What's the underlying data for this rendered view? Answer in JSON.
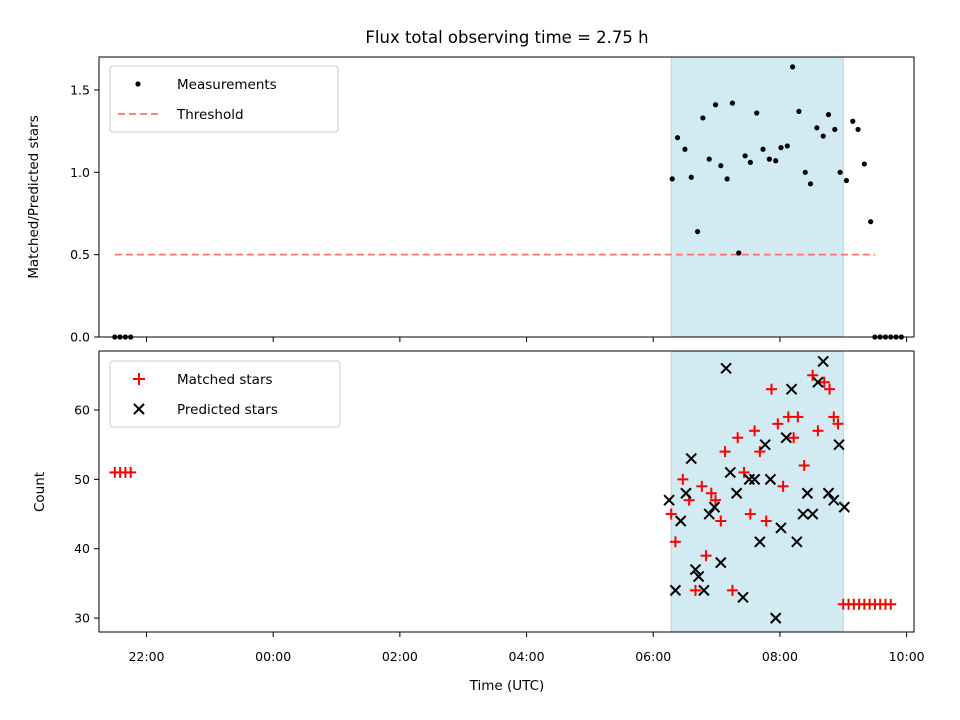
{
  "chart_data": [
    {
      "type": "scatter",
      "title": "Flux total observing time = 2.75 h",
      "xlabel": "",
      "ylabel": "Matched/Predicted stars",
      "x_unit": "hours since 2023-xx 00:00 UTC (ticks 22:00..10:00)",
      "xlim": [
        "21:15",
        "10:07"
      ],
      "ylim": [
        0,
        1.7
      ],
      "yticks": [
        "0.0",
        "0.5",
        "1.0",
        "1.5"
      ],
      "shaded_band": {
        "start": "06:17",
        "end": "09:00",
        "color": "#add8e6"
      },
      "threshold": {
        "name": "Threshold",
        "y": 0.5,
        "x_start": "21:30",
        "x_end": "09:30",
        "color": "#ff6f6f"
      },
      "series": [
        {
          "name": "Measurements",
          "color": "#000000",
          "points": [
            [
              "21:30",
              0
            ],
            [
              "21:35",
              0
            ],
            [
              "21:40",
              0
            ],
            [
              "21:45",
              0
            ],
            [
              "06:18",
              0.96
            ],
            [
              "06:23",
              1.21
            ],
            [
              "06:30",
              1.14
            ],
            [
              "06:36",
              0.97
            ],
            [
              "06:42",
              0.64
            ],
            [
              "06:47",
              1.33
            ],
            [
              "06:53",
              1.08
            ],
            [
              "06:59",
              1.41
            ],
            [
              "07:04",
              1.04
            ],
            [
              "07:10",
              0.96
            ],
            [
              "07:15",
              1.42
            ],
            [
              "07:21",
              0.51
            ],
            [
              "07:27",
              1.1
            ],
            [
              "07:32",
              1.06
            ],
            [
              "07:38",
              1.36
            ],
            [
              "07:44",
              1.14
            ],
            [
              "07:50",
              1.08
            ],
            [
              "07:56",
              1.07
            ],
            [
              "08:01",
              1.15
            ],
            [
              "08:07",
              1.16
            ],
            [
              "08:12",
              1.64
            ],
            [
              "08:18",
              1.37
            ],
            [
              "08:24",
              1.0
            ],
            [
              "08:29",
              0.93
            ],
            [
              "08:35",
              1.27
            ],
            [
              "08:41",
              1.22
            ],
            [
              "08:46",
              1.35
            ],
            [
              "08:52",
              1.26
            ],
            [
              "08:57",
              1.0
            ],
            [
              "09:03",
              0.95
            ],
            [
              "09:09",
              1.31
            ],
            [
              "09:14",
              1.26
            ],
            [
              "09:20",
              1.05
            ],
            [
              "09:26",
              0.7
            ],
            [
              "09:30",
              0
            ],
            [
              "09:35",
              0
            ],
            [
              "09:40",
              0
            ],
            [
              "09:45",
              0
            ],
            [
              "09:50",
              0
            ],
            [
              "09:55",
              0
            ]
          ]
        }
      ],
      "legend": {
        "placement": "top-left",
        "entries": [
          "Measurements",
          "Threshold"
        ]
      }
    },
    {
      "type": "scatter",
      "title": "",
      "xlabel": "Time (UTC)",
      "ylabel": "Count",
      "xticks": [
        "22:00",
        "00:00",
        "02:00",
        "04:00",
        "06:00",
        "08:00",
        "10:00"
      ],
      "ylim": [
        28,
        68.5
      ],
      "yticks": [
        "30",
        "40",
        "50",
        "60"
      ],
      "shaded_band": {
        "start": "06:17",
        "end": "09:00",
        "color": "#add8e6"
      },
      "series": [
        {
          "name": "Matched stars",
          "marker": "plus",
          "color": "#ff0000",
          "points": [
            [
              "21:30",
              51
            ],
            [
              "21:35",
              51
            ],
            [
              "21:40",
              51
            ],
            [
              "21:45",
              51
            ],
            [
              "06:17",
              45
            ],
            [
              "06:21",
              41
            ],
            [
              "06:28",
              50
            ],
            [
              "06:34",
              47
            ],
            [
              "06:40",
              34
            ],
            [
              "06:46",
              49
            ],
            [
              "06:50",
              39
            ],
            [
              "06:55",
              48
            ],
            [
              "06:59",
              47
            ],
            [
              "07:04",
              44
            ],
            [
              "07:08",
              54
            ],
            [
              "07:15",
              34
            ],
            [
              "07:20",
              56
            ],
            [
              "07:26",
              51
            ],
            [
              "07:32",
              45
            ],
            [
              "07:36",
              57
            ],
            [
              "07:41",
              54
            ],
            [
              "07:47",
              44
            ],
            [
              "07:52",
              63
            ],
            [
              "07:58",
              58
            ],
            [
              "08:03",
              49
            ],
            [
              "08:08",
              59
            ],
            [
              "08:13",
              56
            ],
            [
              "08:17",
              59
            ],
            [
              "08:23",
              52
            ],
            [
              "08:31",
              65
            ],
            [
              "08:36",
              57
            ],
            [
              "08:42",
              64
            ],
            [
              "08:47",
              63
            ],
            [
              "08:51",
              59
            ],
            [
              "08:55",
              58
            ],
            [
              "09:00",
              32
            ],
            [
              "09:05",
              32
            ],
            [
              "09:10",
              32
            ],
            [
              "09:15",
              32
            ],
            [
              "09:20",
              32
            ],
            [
              "09:25",
              32
            ],
            [
              "09:30",
              32
            ],
            [
              "09:35",
              32
            ],
            [
              "09:40",
              32
            ],
            [
              "09:45",
              32
            ]
          ]
        },
        {
          "name": "Predicted stars",
          "marker": "x",
          "color": "#000000",
          "points": [
            [
              "06:15",
              47
            ],
            [
              "06:21",
              34
            ],
            [
              "06:26",
              44
            ],
            [
              "06:31",
              48
            ],
            [
              "06:36",
              53
            ],
            [
              "06:40",
              37
            ],
            [
              "06:43",
              36
            ],
            [
              "06:48",
              34
            ],
            [
              "06:53",
              45
            ],
            [
              "06:58",
              46
            ],
            [
              "07:04",
              38
            ],
            [
              "07:09",
              66
            ],
            [
              "07:13",
              51
            ],
            [
              "07:19",
              48
            ],
            [
              "07:25",
              33
            ],
            [
              "07:31",
              50
            ],
            [
              "07:36",
              50
            ],
            [
              "07:41",
              41
            ],
            [
              "07:46",
              55
            ],
            [
              "07:51",
              50
            ],
            [
              "07:56",
              30
            ],
            [
              "08:01",
              43
            ],
            [
              "08:06",
              56
            ],
            [
              "08:11",
              63
            ],
            [
              "08:16",
              41
            ],
            [
              "08:22",
              45
            ],
            [
              "08:26",
              48
            ],
            [
              "08:31",
              45
            ],
            [
              "08:36",
              64
            ],
            [
              "08:41",
              67
            ],
            [
              "08:46",
              48
            ],
            [
              "08:51",
              47
            ],
            [
              "08:56",
              55
            ],
            [
              "09:01",
              46
            ]
          ]
        }
      ],
      "legend": {
        "placement": "top-left",
        "entries": [
          "Matched stars",
          "Predicted stars"
        ]
      }
    }
  ]
}
